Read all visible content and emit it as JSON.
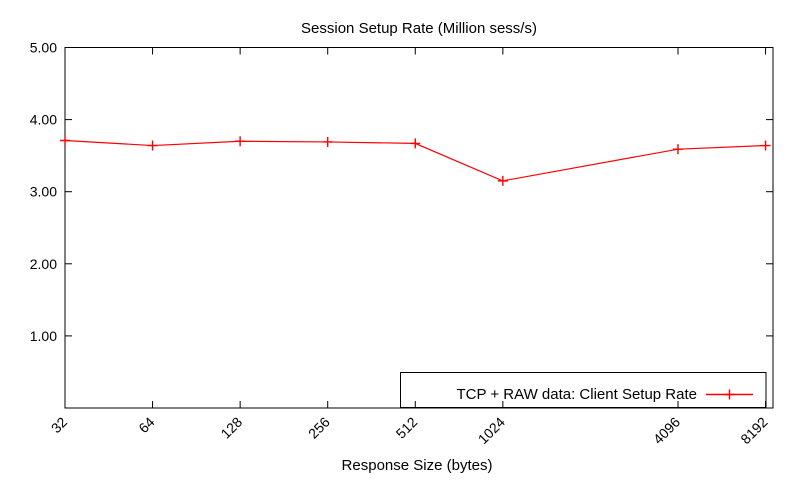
{
  "page": {
    "background_color": "#ffffff",
    "foreground_color": "#000000"
  },
  "chart_data": {
    "type": "line",
    "title": "Session Setup Rate (Million sess/s)",
    "xlabel": "Response Size (bytes)",
    "ylabel": "",
    "x_scale": "log2",
    "x": [
      32,
      64,
      128,
      256,
      512,
      1024,
      4096,
      8192
    ],
    "x_tick_labels": [
      "32",
      "64",
      "128",
      "256",
      "512",
      "1024",
      "4096",
      "8192"
    ],
    "y_tick_values": [
      1,
      2,
      3,
      4,
      5
    ],
    "y_tick_labels": [
      "1.00",
      "2.00",
      "3.00",
      "4.00",
      "5.00"
    ],
    "ylim": [
      0,
      5
    ],
    "grid": false,
    "border": true,
    "legend_position": "bottom-right-inside",
    "series": [
      {
        "name": "TCP + RAW data: Client Setup Rate",
        "color": "#ff0000",
        "marker": "plus",
        "values": [
          3.71,
          3.64,
          3.7,
          3.69,
          3.67,
          3.15,
          3.59,
          3.64
        ]
      }
    ]
  }
}
